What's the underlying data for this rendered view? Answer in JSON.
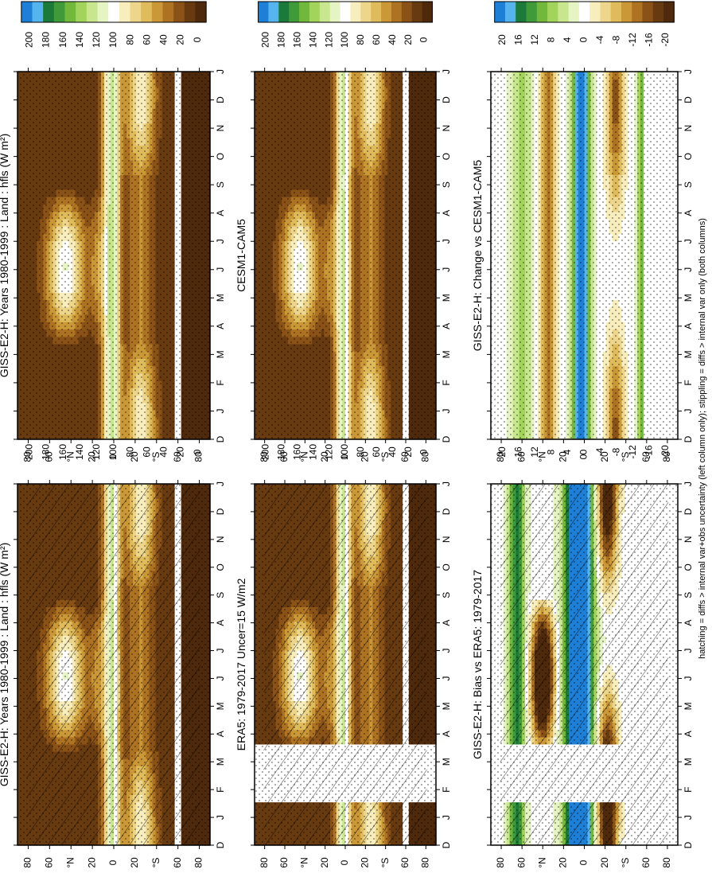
{
  "footnote": "hatching = diffs > internal var+obs uncertainty (left column only); stippling = diffs > internal var only (both columns)",
  "palette_main": [
    "#1e7fd6",
    "#55b4ee",
    "#1b7a3a",
    "#3f9a3a",
    "#72b83d",
    "#a2d35b",
    "#c8e68d",
    "#e5f4c2",
    "#ffffff",
    "#f8eebd",
    "#edd68c",
    "#e0bb5c",
    "#cb9838",
    "#ad7222",
    "#8a5216",
    "#683a10",
    "#4e290b"
  ],
  "palette_diff": [
    "#1e7fd6",
    "#55b4ee",
    "#1b7a3a",
    "#3f9a3a",
    "#72b83d",
    "#a2d35b",
    "#c8e68d",
    "#e5f4c2",
    "#ffffff",
    "#f8eebd",
    "#edd68c",
    "#e0bb5c",
    "#cb9838",
    "#ad7222",
    "#8a5216",
    "#683a10",
    "#4e290b"
  ],
  "chart_data": [
    {
      "type": "heatmap",
      "title": "GISS-E2-H: Years 1980-1999 : Land : hfls (W m²)",
      "x": [
        "D",
        "J",
        "F",
        "M",
        "A",
        "M",
        "J",
        "J",
        "A",
        "S",
        "O",
        "N",
        "D",
        "J"
      ],
      "y": [
        "80",
        "60",
        "°N",
        "20",
        "0",
        "20",
        "°S",
        "60",
        "80"
      ],
      "colorbar": [
        "200",
        "180",
        "160",
        "140",
        "120",
        "100",
        "80",
        "60",
        "40",
        "20",
        "0"
      ],
      "colorbar_range": [
        0,
        200
      ],
      "mask_months": [],
      "hatching": true,
      "stippling": true,
      "field": "mean"
    },
    {
      "type": "heatmap",
      "title": "GISS-E2-H: Years 1980-1999 : Land : hfls (W m²)",
      "x": [
        "D",
        "J",
        "F",
        "M",
        "A",
        "M",
        "J",
        "J",
        "A",
        "S",
        "O",
        "N",
        "D",
        "J"
      ],
      "y": [
        "80",
        "60",
        "°N",
        "20",
        "0",
        "20",
        "°S",
        "60",
        "80"
      ],
      "colorbar": [
        "200",
        "180",
        "160",
        "140",
        "120",
        "100",
        "80",
        "60",
        "40",
        "20",
        "0"
      ],
      "colorbar_range": [
        0,
        200
      ],
      "mask_months": [],
      "hatching": false,
      "stippling": true,
      "field": "mean"
    },
    {
      "type": "heatmap",
      "title": "ERA5: 1979-2017 Uncer=15 W/m2",
      "x": [
        "D",
        "J",
        "F",
        "M",
        "A",
        "M",
        "J",
        "J",
        "A",
        "S",
        "O",
        "N",
        "D",
        "J"
      ],
      "y": [
        "80",
        "60",
        "°N",
        "20",
        "0",
        "20",
        "°S",
        "60",
        "80"
      ],
      "colorbar": [
        "200",
        "180",
        "160",
        "140",
        "120",
        "100",
        "80",
        "60",
        "40",
        "20",
        "0"
      ],
      "colorbar_range": [
        0,
        200
      ],
      "mask_months": [
        "F",
        "M"
      ],
      "hatching": true,
      "stippling": true,
      "field": "mean"
    },
    {
      "type": "heatmap",
      "title": "CESM1-CAM5",
      "x": [
        "D",
        "J",
        "F",
        "M",
        "A",
        "M",
        "J",
        "J",
        "A",
        "S",
        "O",
        "N",
        "D",
        "J"
      ],
      "y": [
        "80",
        "60",
        "°N",
        "20",
        "0",
        "20",
        "°S",
        "60",
        "80"
      ],
      "colorbar": [
        "200",
        "180",
        "160",
        "140",
        "120",
        "100",
        "80",
        "60",
        "40",
        "20",
        "0"
      ],
      "colorbar_range": [
        0,
        200
      ],
      "mask_months": [],
      "hatching": false,
      "stippling": true,
      "field": "mean"
    },
    {
      "type": "heatmap",
      "title": "GISS-E2-H: Bias vs ERA5: 1979-2017",
      "x": [
        "D",
        "J",
        "F",
        "M",
        "A",
        "M",
        "J",
        "J",
        "A",
        "S",
        "O",
        "N",
        "D",
        "J"
      ],
      "y": [
        "80",
        "60",
        "°N",
        "20",
        "0",
        "20",
        "°S",
        "60",
        "80"
      ],
      "colorbar": [
        "20",
        "16",
        "12",
        "8",
        "4",
        "0",
        "-4",
        "-8",
        "-12",
        "-16",
        "-20"
      ],
      "colorbar_range": [
        -20,
        20
      ],
      "mask_months": [
        "F",
        "M"
      ],
      "hatching": true,
      "stippling": true,
      "field": "bias"
    },
    {
      "type": "heatmap",
      "title": "GISS-E2-H: Change vs CESM1-CAM5",
      "x": [
        "D",
        "J",
        "F",
        "M",
        "A",
        "M",
        "J",
        "J",
        "A",
        "S",
        "O",
        "N",
        "D",
        "J"
      ],
      "y": [
        "80",
        "60",
        "°N",
        "20",
        "0",
        "20",
        "°S",
        "60",
        "80"
      ],
      "colorbar": [
        "20",
        "16",
        "12",
        "8",
        "4",
        "0",
        "-4",
        "-8",
        "-12",
        "-16",
        "-20"
      ],
      "colorbar_range": [
        -20,
        20
      ],
      "mask_months": [],
      "hatching": false,
      "stippling": true,
      "field": "change"
    }
  ]
}
